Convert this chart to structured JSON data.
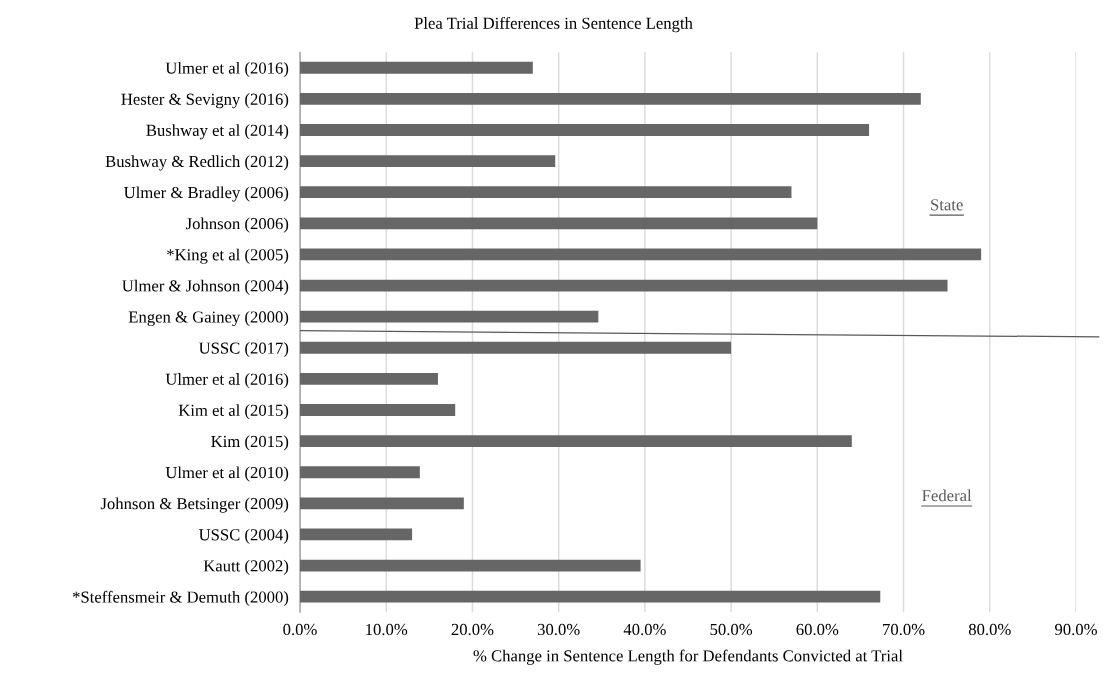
{
  "chart_data": {
    "type": "bar",
    "orientation": "horizontal",
    "title": "Plea Trial Differences in Sentence Length",
    "xlabel": "% Change in Sentence Length for Defendants Convicted at Trial",
    "categories": [
      "Ulmer et al (2016)",
      "Hester & Sevigny (2016)",
      "Bushway et al (2014)",
      "Bushway & Redlich (2012)",
      "Ulmer & Bradley (2006)",
      "Johnson (2006)",
      "*King et al (2005)",
      "Ulmer & Johnson (2004)",
      "Engen & Gainey (2000)",
      "USSC (2017)",
      "Ulmer et al (2016)",
      "Kim et al (2015)",
      "Kim (2015)",
      "Ulmer et al (2010)",
      "Johnson & Betsinger (2009)",
      "USSC (2004)",
      "Kautt (2002)",
      "*Steffensmeir & Demuth (2000)"
    ],
    "values": [
      27.0,
      72.0,
      66.0,
      29.6,
      57.0,
      60.0,
      79.0,
      75.1,
      34.6,
      50.0,
      16.0,
      18.0,
      64.0,
      13.9,
      19.0,
      13.0,
      39.5,
      67.3
    ],
    "color": "#666666",
    "xlim": [
      0,
      90
    ],
    "xticks": [
      {
        "value": 0,
        "label": "0.0%"
      },
      {
        "value": 10,
        "label": "10.0%"
      },
      {
        "value": 20,
        "label": "20.0%"
      },
      {
        "value": 30,
        "label": "30.0%"
      },
      {
        "value": 40,
        "label": "40.0%"
      },
      {
        "value": 50,
        "label": "50.0%"
      },
      {
        "value": 60,
        "label": "60.0%"
      },
      {
        "value": 70,
        "label": "70.0%"
      },
      {
        "value": 80,
        "label": "80.0%"
      },
      {
        "value": 90,
        "label": "90.0%"
      }
    ],
    "grid": "x",
    "legend": false,
    "annotations": [
      "State",
      "Federal"
    ]
  }
}
